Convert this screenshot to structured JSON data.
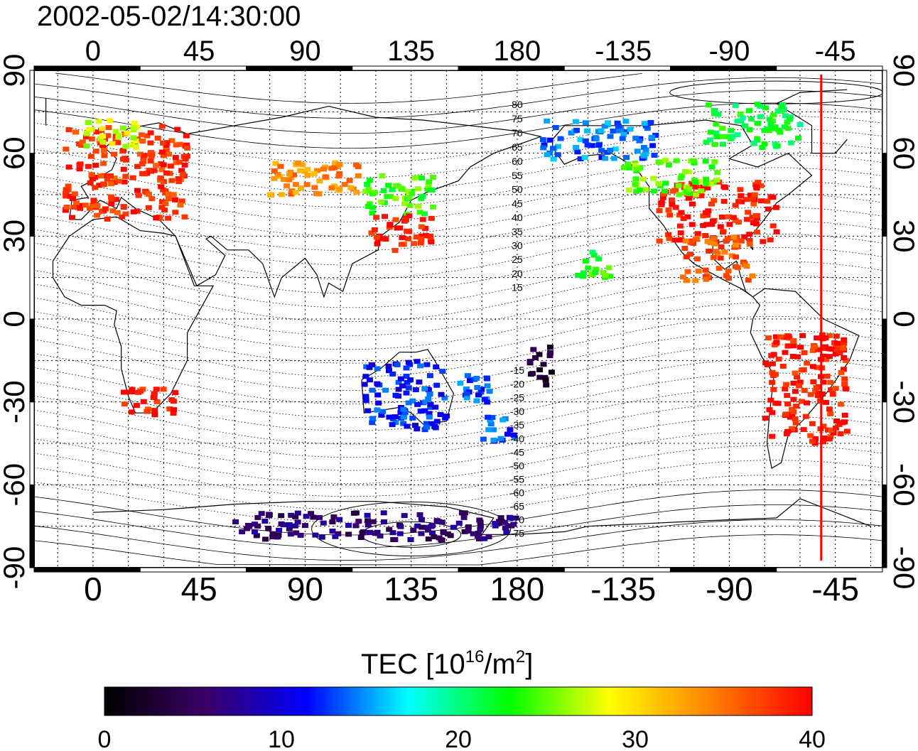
{
  "title": "2002-05-02/14:30:00",
  "map": {
    "top_lon_ticks": [
      "0",
      "45",
      "90",
      "135",
      "180",
      "-135",
      "-90",
      "-45"
    ],
    "bottom_lon_ticks": [
      "0",
      "45",
      "90",
      "135",
      "180",
      "-135",
      "-90",
      "-45"
    ],
    "left_lat_ticks": [
      "90",
      "60",
      "30",
      "0",
      "-30",
      "-60",
      "-90"
    ],
    "right_lat_ticks": [
      "90",
      "60",
      "30",
      "0",
      "-30",
      "-60",
      "-90"
    ],
    "lon_tick_values": [
      0,
      45,
      90,
      135,
      180,
      -135,
      -90,
      -45
    ],
    "lat_tick_values": [
      90,
      60,
      30,
      0,
      -30,
      -60,
      -90
    ],
    "lon_range": [
      -25,
      335
    ],
    "lat_range": [
      -90,
      90
    ],
    "grid": "dotted",
    "terminator_lon": -51,
    "geomag_north_labels": [
      "80",
      "75",
      "70",
      "65",
      "60",
      "55",
      "50",
      "45",
      "40",
      "35",
      "30",
      "25",
      "20",
      "15"
    ],
    "geomag_south_labels": [
      "-15",
      "-20",
      "-25",
      "-30",
      "-35",
      "-40",
      "-45",
      "-50",
      "-55",
      "-60",
      "-65",
      "-70",
      "-75"
    ]
  },
  "colorbar": {
    "label_main": "TEC  [10",
    "label_exp": "16",
    "label_mid": "/m",
    "label_exp2": "2",
    "label_end": "]",
    "ticks": [
      "0",
      "10",
      "20",
      "30",
      "40"
    ],
    "tick_values": [
      0,
      10,
      20,
      30,
      40
    ],
    "range": [
      0,
      40
    ],
    "colors": [
      "#000000",
      "#3a0066",
      "#0000ff",
      "#00ffff",
      "#00ff00",
      "#ffff00",
      "#ff8000",
      "#ff0000"
    ]
  },
  "chart_data": {
    "type": "heatmap",
    "title": "2002-05-02/14:30:00",
    "xlabel": "",
    "ylabel": "",
    "colorbar_label": "TEC [10^16/m^2]",
    "xlim": [
      -25,
      335
    ],
    "ylim": [
      -90,
      90
    ],
    "clim": [
      0,
      40
    ],
    "regions": [
      {
        "lon": [
          -12,
          40
        ],
        "lat": [
          36,
          70
        ],
        "tec": 38
      },
      {
        "lon": [
          -5,
          20
        ],
        "lat": [
          62,
          72
        ],
        "tec": 27
      },
      {
        "lon": [
          75,
          115
        ],
        "lat": [
          45,
          58
        ],
        "tec": 34
      },
      {
        "lon": [
          115,
          145
        ],
        "lat": [
          38,
          52
        ],
        "tec": 24
      },
      {
        "lon": [
          118,
          145
        ],
        "lat": [
          24,
          38
        ],
        "tec": 39
      },
      {
        "lon": [
          -120,
          -70
        ],
        "lat": [
          28,
          50
        ],
        "tec": 39
      },
      {
        "lon": [
          -135,
          -95
        ],
        "lat": [
          45,
          58
        ],
        "tec": 25
      },
      {
        "lon": [
          -170,
          -120
        ],
        "lat": [
          58,
          72
        ],
        "tec": 14
      },
      {
        "lon": [
          -100,
          -60
        ],
        "lat": [
          62,
          78
        ],
        "tec": 22
      },
      {
        "lon": [
          -110,
          -80
        ],
        "lat": [
          14,
          30
        ],
        "tec": 36
      },
      {
        "lon": [
          -75,
          -40
        ],
        "lat": [
          -45,
          -5
        ],
        "tec": 39
      },
      {
        "lon": [
          10,
          35
        ],
        "lat": [
          -35,
          -25
        ],
        "tec": 39
      },
      {
        "lon": [
          115,
          150
        ],
        "lat": [
          -40,
          -15
        ],
        "tec": 12
      },
      {
        "lon": [
          165,
          180
        ],
        "lat": [
          -45,
          -35
        ],
        "tec": 13
      },
      {
        "lon": [
          155,
          175
        ],
        "lat": [
          -30,
          -20
        ],
        "tec": 13
      },
      {
        "lon": [
          -175,
          -165
        ],
        "lat": [
          -25,
          -10
        ],
        "tec": 3
      },
      {
        "lon": [
          60,
          180
        ],
        "lat": [
          -80,
          -70
        ],
        "tec": 6
      },
      {
        "lon": [
          -155,
          -140
        ],
        "lat": [
          15,
          25
        ],
        "tec": 23
      }
    ]
  }
}
